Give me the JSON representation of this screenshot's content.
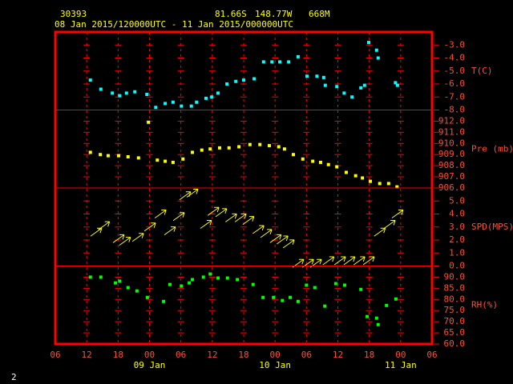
{
  "header": {
    "station": "30393",
    "lat": "81.66S",
    "lon": "148.77W",
    "elev": "668M",
    "period": "08 Jan 2015/120000UTC - 11 Jan 2015/000000UTC"
  },
  "footer": {
    "page": "2"
  },
  "x_axis": {
    "xlim": [
      0,
      72
    ],
    "xticks": [
      {
        "value": 0,
        "label": "06"
      },
      {
        "value": 6,
        "label": "12"
      },
      {
        "value": 12,
        "label": "18"
      },
      {
        "value": 18,
        "label": "00"
      },
      {
        "value": 24,
        "label": "06"
      },
      {
        "value": 30,
        "label": "12"
      },
      {
        "value": 36,
        "label": "18"
      },
      {
        "value": 42,
        "label": "00"
      },
      {
        "value": 48,
        "label": "06"
      },
      {
        "value": 54,
        "label": "12"
      },
      {
        "value": 60,
        "label": "18"
      },
      {
        "value": 66,
        "label": "00"
      },
      {
        "value": 72,
        "label": "06"
      }
    ],
    "dates": [
      {
        "value": 18,
        "label": "09 Jan"
      },
      {
        "value": 42,
        "label": "10 Jan"
      },
      {
        "value": 66,
        "label": "11 Jan"
      }
    ]
  },
  "chart_data": [
    {
      "type": "scatter",
      "name": "T(C)",
      "color": "#00ffff",
      "ylim": [
        -8,
        -2
      ],
      "yticks": [
        {
          "value": -3,
          "label": "-3.0"
        },
        {
          "value": -4,
          "label": "-4.0"
        },
        {
          "value": -5,
          "label": "-5.0"
        },
        {
          "value": -6,
          "label": "-6.0"
        },
        {
          "value": -7,
          "label": "-7.0"
        },
        {
          "value": -8,
          "label": "-8.0"
        }
      ],
      "x": [
        6.7,
        8.7,
        10.9,
        12.3,
        13.6,
        15.2,
        17.5,
        19.2,
        21.0,
        22.5,
        24.1,
        26.0,
        27.0,
        28.8,
        29.9,
        31.1,
        32.8,
        34.5,
        36.0,
        38.0,
        39.8,
        41.4,
        42.9,
        44.6,
        46.4,
        48.1,
        50.0,
        51.3,
        51.6,
        53.8,
        55.2,
        56.7,
        58.4,
        59.1,
        59.9,
        61.4,
        61.7,
        65.0,
        65.4
      ],
      "values": [
        -5.7,
        -6.4,
        -6.7,
        -6.9,
        -6.7,
        -6.6,
        -6.8,
        -7.8,
        -7.5,
        -7.4,
        -7.7,
        -7.7,
        -7.4,
        -7.1,
        -7.0,
        -6.7,
        -6.0,
        -5.8,
        -5.7,
        -5.6,
        -4.3,
        -4.3,
        -4.3,
        -4.3,
        -3.9,
        -5.4,
        -5.4,
        -5.5,
        -6.1,
        -6.2,
        -6.7,
        -7.0,
        -6.3,
        -6.1,
        -2.8,
        -3.4,
        -4.0,
        -5.9,
        -6.1
      ]
    },
    {
      "type": "scatter",
      "name": "Pre (mb)",
      "color": "#ffff00",
      "ylim": [
        906,
        913
      ],
      "yticks": [
        {
          "value": 912,
          "label": "912.0"
        },
        {
          "value": 911,
          "label": "911.0"
        },
        {
          "value": 910,
          "label": "910.0"
        },
        {
          "value": 909,
          "label": "909.0"
        },
        {
          "value": 908,
          "label": "908.0"
        },
        {
          "value": 907,
          "label": "907.0"
        },
        {
          "value": 906,
          "label": "906.0"
        }
      ],
      "x": [
        6.7,
        8.6,
        10.1,
        12.1,
        13.9,
        15.9,
        17.8,
        19.5,
        21.0,
        22.5,
        24.4,
        26.2,
        28.0,
        29.6,
        31.4,
        33.2,
        35.1,
        37.2,
        39.1,
        40.9,
        42.7,
        43.8,
        45.5,
        47.3,
        49.2,
        50.7,
        52.2,
        53.8,
        55.6,
        57.4,
        58.7,
        60.2,
        62.0,
        63.7,
        65.3
      ],
      "values": [
        909.2,
        909.0,
        908.9,
        908.9,
        908.8,
        908.7,
        911.9,
        908.5,
        908.4,
        908.3,
        908.6,
        909.2,
        909.4,
        909.5,
        909.6,
        909.6,
        909.7,
        909.9,
        909.9,
        909.8,
        909.7,
        909.5,
        909.0,
        908.6,
        908.4,
        908.3,
        908.1,
        907.9,
        907.4,
        907.1,
        906.9,
        906.6,
        906.4,
        906.4,
        906.1
      ]
    },
    {
      "type": "wind",
      "name": "SPD(MPS)",
      "color": "#ffff00",
      "ylim": [
        0,
        6
      ],
      "yticks": [
        {
          "value": 5,
          "label": "5.0"
        },
        {
          "value": 4,
          "label": "4.0"
        },
        {
          "value": 3,
          "label": "3.0"
        },
        {
          "value": 2,
          "label": "2.0"
        },
        {
          "value": 1,
          "label": "1.0"
        },
        {
          "value": 0,
          "label": "0.0"
        }
      ],
      "x": [
        7.8,
        9.3,
        12.1,
        13.3,
        15.8,
        18.1,
        20.1,
        21.9,
        23.6,
        24.8,
        26.2,
        28.8,
        30.2,
        31.7,
        33.6,
        35.4,
        36.9,
        38.8,
        40.3,
        42.1,
        43.4,
        44.6,
        46.4,
        48.3,
        49.8,
        52.2,
        54.4,
        56.2,
        58.1,
        59.9,
        62.0,
        63.9,
        65.4
      ],
      "values": [
        2.6,
        3.1,
        2.1,
        1.9,
        2.2,
        3.0,
        4.0,
        2.7,
        3.8,
        5.4,
        5.6,
        3.2,
        4.2,
        4.1,
        3.7,
        3.7,
        3.5,
        2.8,
        2.5,
        2.1,
        2.0,
        1.7,
        0.2,
        0.2,
        0.2,
        0.4,
        0.4,
        0.4,
        0.4,
        0.4,
        2.6,
        3.2,
        4.0
      ]
    },
    {
      "type": "scatter",
      "name": "RH(%)",
      "color": "#00ff00",
      "ylim": [
        60,
        95
      ],
      "yticks": [
        {
          "value": 90,
          "label": "90.0"
        },
        {
          "value": 85,
          "label": "85.0"
        },
        {
          "value": 80,
          "label": "80.0"
        },
        {
          "value": 75,
          "label": "75.0"
        },
        {
          "value": 70,
          "label": "70.0"
        },
        {
          "value": 65,
          "label": "65.0"
        },
        {
          "value": 60,
          "label": "60.0"
        }
      ],
      "x": [
        6.7,
        8.7,
        11.5,
        12.3,
        13.9,
        15.6,
        17.6,
        20.7,
        21.9,
        24.1,
        25.6,
        26.2,
        28.3,
        29.6,
        31.1,
        32.9,
        34.8,
        37.8,
        39.7,
        41.7,
        43.4,
        44.9,
        46.4,
        48.0,
        49.6,
        51.5,
        53.6,
        55.3,
        58.4,
        59.6,
        61.4,
        61.7,
        63.3,
        65.1
      ],
      "values": [
        90,
        90,
        87.4,
        88.2,
        85.3,
        83.8,
        80.9,
        79.1,
        86.7,
        86.0,
        87.4,
        88.9,
        90,
        91.4,
        89.6,
        89.6,
        88.9,
        86.7,
        80.9,
        80.9,
        79.5,
        80.9,
        79.1,
        86.4,
        85.3,
        77.0,
        87.1,
        86.4,
        84.5,
        72.3,
        71.6,
        68.7,
        77.3,
        80.2
      ]
    }
  ]
}
